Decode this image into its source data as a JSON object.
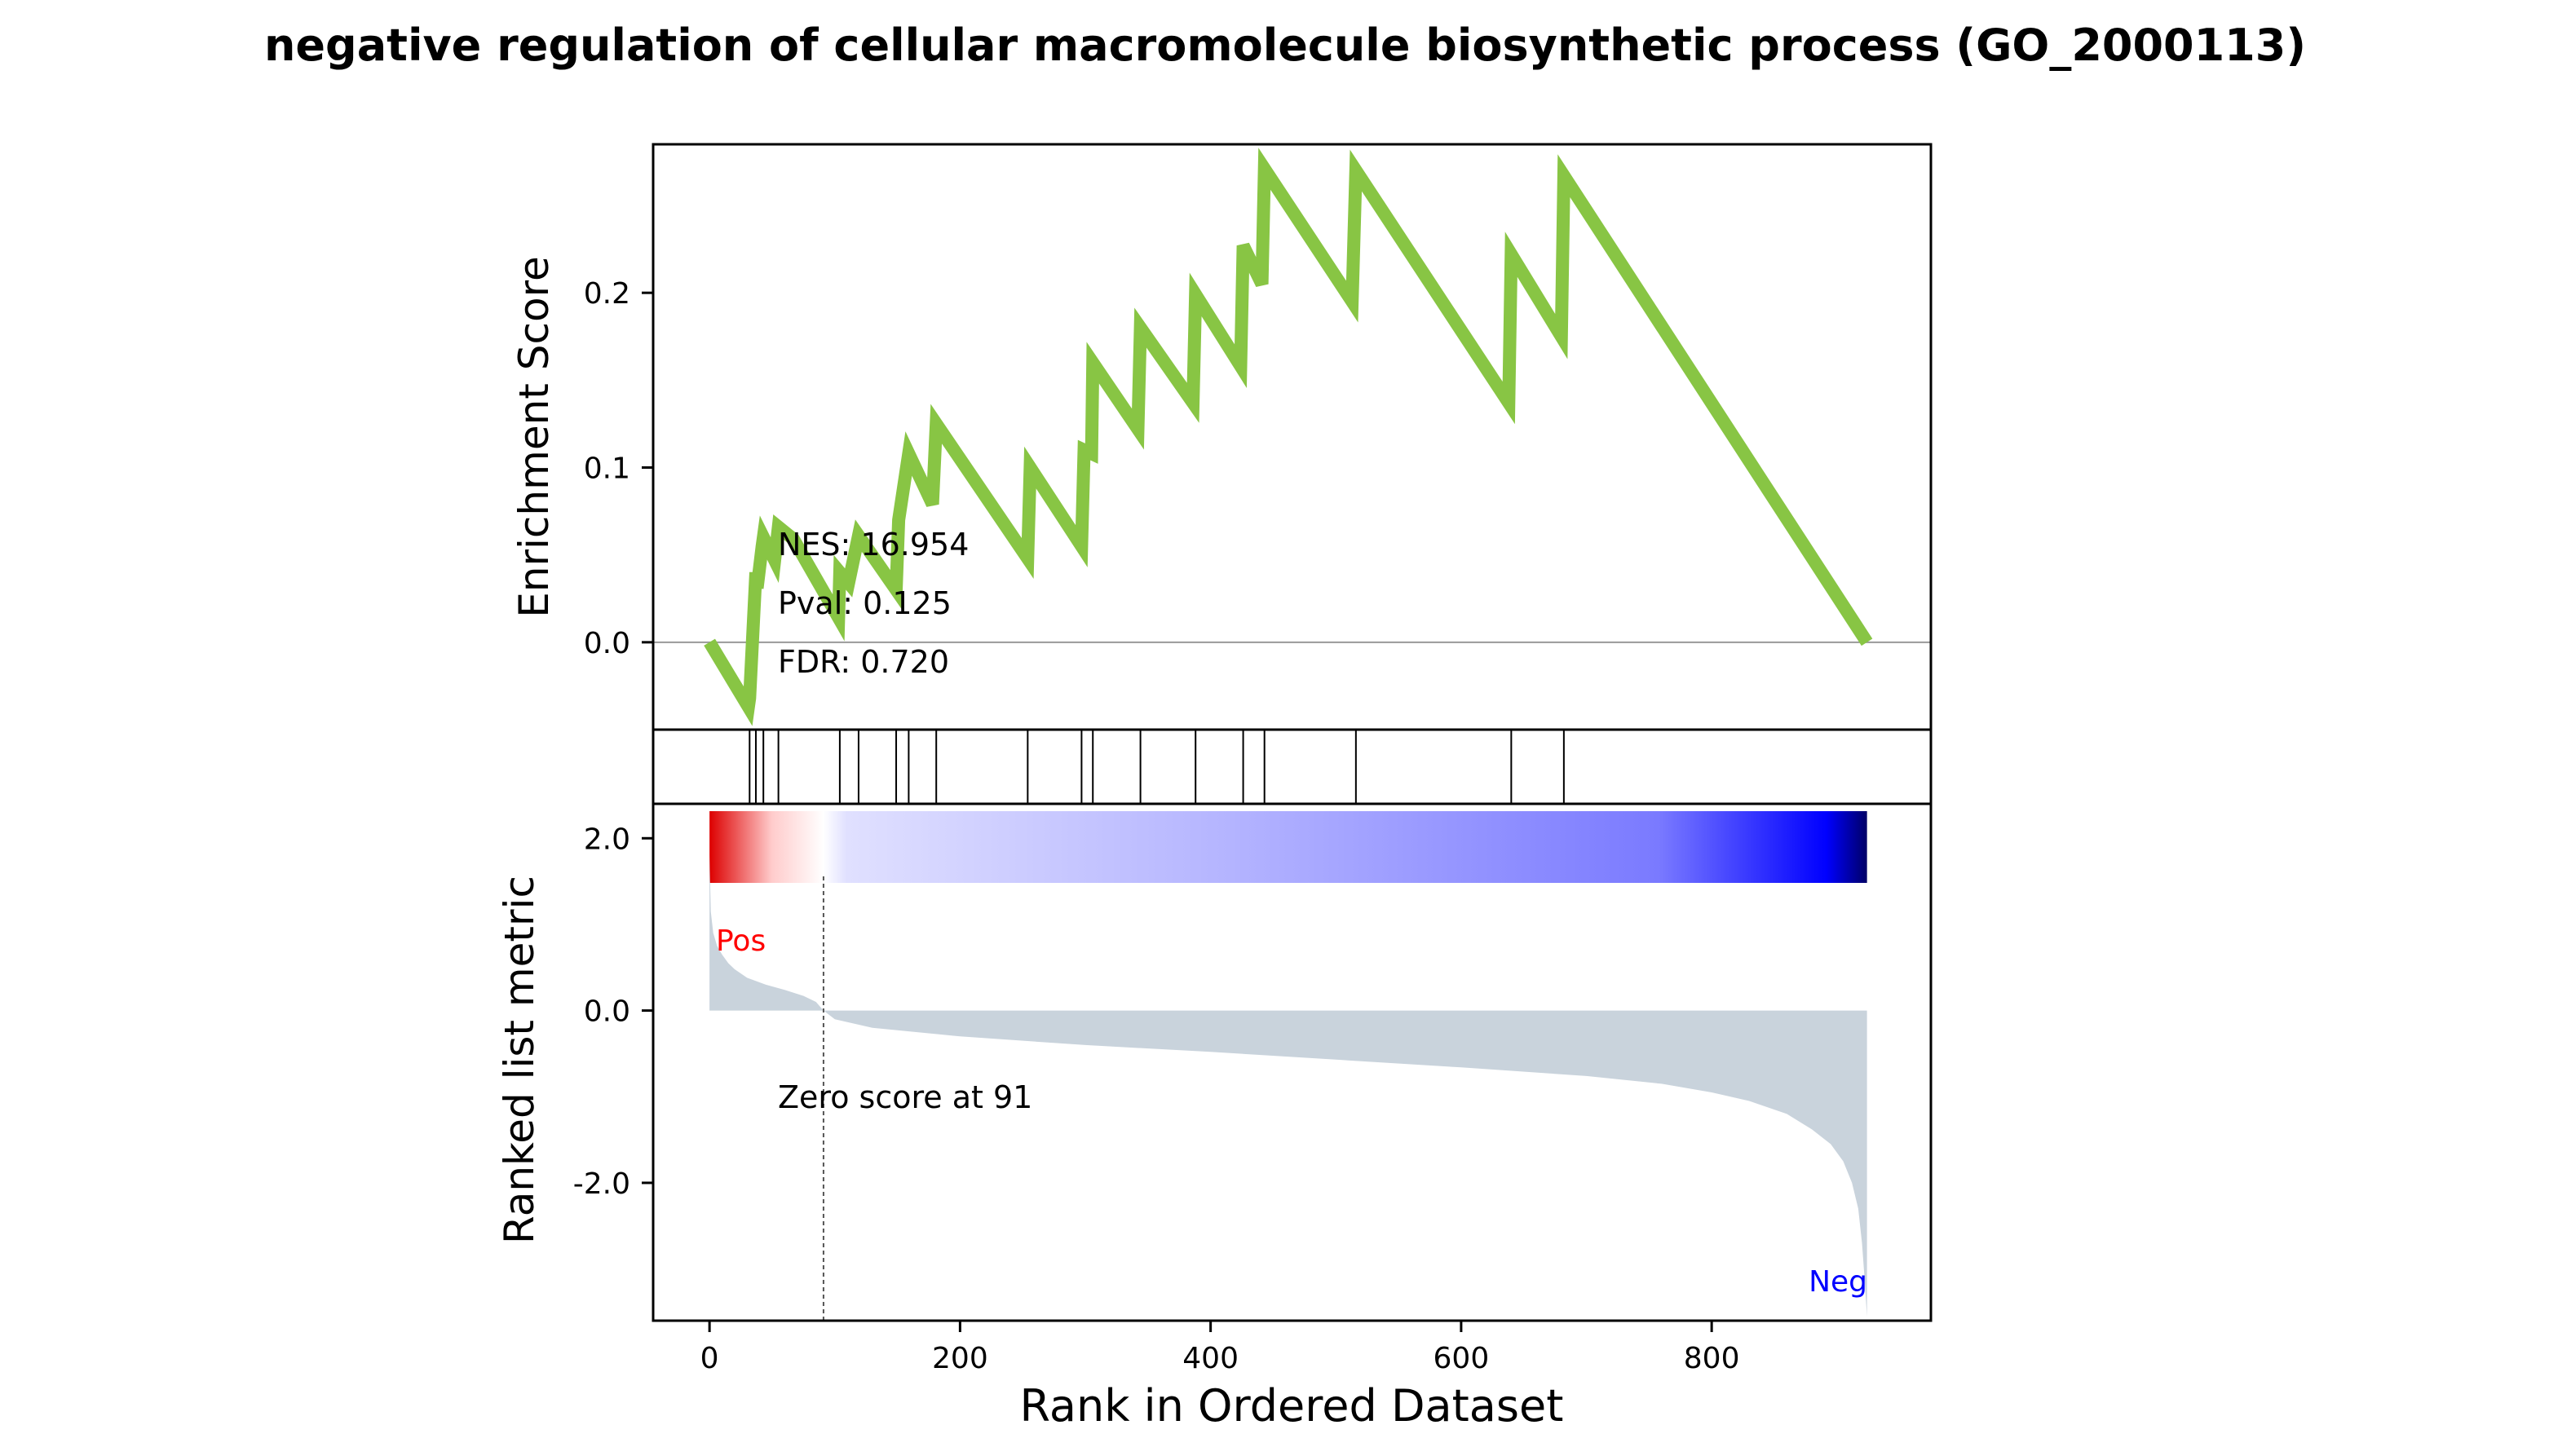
{
  "figure": {
    "title": "negative regulation of cellular macromolecule biosynthetic process (GO_2000113)"
  },
  "chart_data": {
    "type": "line",
    "title": "negative regulation of cellular macromolecule biosynthetic process (GO_2000113)",
    "xlabel": "Rank in Ordered Dataset",
    "xlim": [
      -45,
      975
    ],
    "x_ticks": [
      0,
      200,
      400,
      600,
      800
    ],
    "x_tick_labels": [
      "0",
      "200",
      "400",
      "600",
      "800"
    ],
    "n_genes": 925,
    "es_panel": {
      "ylabel": "Enrichment Score",
      "ylim": [
        -0.05,
        0.285
      ],
      "y_ticks": [
        0.0,
        0.1,
        0.2
      ],
      "y_tick_labels": [
        "0.0",
        "0.1",
        "0.2"
      ],
      "line_color": "#88c544",
      "zero_line_color": "#999999",
      "running_es": {
        "x": [
          0,
          31,
          32,
          37,
          38,
          42,
          43,
          52,
          55,
          67,
          103,
          104,
          111,
          119,
          149,
          151,
          159,
          178,
          181,
          254,
          256,
          297,
          299,
          305,
          306,
          342,
          344,
          386,
          388,
          424,
          426,
          441,
          443,
          513,
          516,
          638,
          640,
          680,
          682,
          924
        ],
        "y": [
          0.0,
          -0.037,
          -0.032,
          0.04,
          0.031,
          0.055,
          0.06,
          0.047,
          0.066,
          0.059,
          0.014,
          0.04,
          0.034,
          0.061,
          0.03,
          0.07,
          0.108,
          0.079,
          0.125,
          0.048,
          0.1,
          0.055,
          0.11,
          0.108,
          0.16,
          0.122,
          0.18,
          0.137,
          0.199,
          0.158,
          0.227,
          0.205,
          0.271,
          0.195,
          0.27,
          0.137,
          0.222,
          0.175,
          0.267,
          0.0
        ]
      },
      "annotations": [
        {
          "id": "nes",
          "text": "NES: 16.954"
        },
        {
          "id": "pval",
          "text": "Pval: 0.125"
        },
        {
          "id": "fdr",
          "text": "FDR: 0.720"
        }
      ]
    },
    "hits_panel": {
      "positions": [
        32,
        37,
        43,
        55,
        104,
        119,
        149,
        159,
        181,
        254,
        297,
        306,
        344,
        388,
        426,
        443,
        516,
        640,
        682
      ]
    },
    "rank_panel": {
      "ylabel": "Ranked list metric",
      "ylim": [
        -3.6,
        2.4
      ],
      "y_ticks": [
        2.0,
        0.0,
        -2.0
      ],
      "y_tick_labels": [
        "2.0",
        "0.0",
        "-2.0"
      ],
      "fill_color": "#c9d3dc",
      "pos_label": "Pos",
      "neg_label": "Neg",
      "pos_color": "#ff0000",
      "neg_color": "#0000ff",
      "zero_cross_rank": 91,
      "zero_cross_text": "Zero score at 91",
      "heatmap_colors": [
        "#dd0000",
        "#ffffff",
        "#e0e0ff",
        "#b4b4ff",
        "#7a7aff",
        "#0000ff",
        "#000066"
      ],
      "metric_curve": {
        "x": [
          0,
          1,
          3,
          6,
          10,
          15,
          20,
          30,
          45,
          60,
          75,
          85,
          91,
          100,
          130,
          200,
          300,
          400,
          500,
          600,
          700,
          760,
          800,
          830,
          860,
          880,
          895,
          905,
          912,
          917,
          920,
          922,
          924
        ],
        "y": [
          1.8,
          1.15,
          0.9,
          0.75,
          0.65,
          0.55,
          0.48,
          0.38,
          0.3,
          0.24,
          0.17,
          0.1,
          0.0,
          -0.1,
          -0.2,
          -0.3,
          -0.4,
          -0.48,
          -0.57,
          -0.66,
          -0.76,
          -0.85,
          -0.95,
          -1.05,
          -1.2,
          -1.38,
          -1.55,
          -1.75,
          -2.0,
          -2.3,
          -2.7,
          -3.1,
          -3.55
        ]
      }
    }
  }
}
